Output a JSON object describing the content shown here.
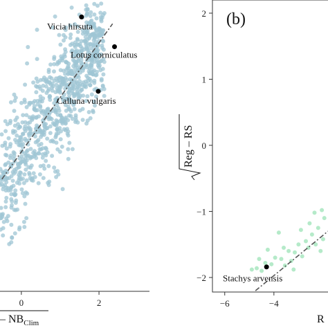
{
  "chart_data": [
    {
      "type": "scatter",
      "panel": "a",
      "xlim": [
        -0.55,
        3.3
      ],
      "ylim": [
        -2.05,
        2.2
      ],
      "x_ticks": [
        0,
        2
      ],
      "x_tick_labels": [
        "0",
        "2"
      ],
      "xlabel_main": "– NB",
      "xlabel_sub": "Clim",
      "point_color": "#9fc6d4",
      "trend_line": {
        "x": [
          -0.5,
          2.35
        ],
        "y": [
          -0.4,
          1.9
        ],
        "style": "dash-dot",
        "color": "#555555"
      },
      "annotations": [
        {
          "label": "Vicia hirsuta",
          "x": 1.55,
          "y": 2.0
        },
        {
          "label": "Lotus corniculatus",
          "x": 2.4,
          "y": 1.56
        },
        {
          "label": "Calluna vulgaris",
          "x": 1.98,
          "y": 0.9
        }
      ]
    },
    {
      "type": "scatter",
      "panel": "b",
      "panel_label": "(b)",
      "xlim": [
        -6.5,
        -1.8
      ],
      "ylim": [
        -2.15,
        2.2
      ],
      "x_ticks": [
        -6,
        -4
      ],
      "x_tick_labels": [
        "−6",
        "−4"
      ],
      "y_ticks": [
        -2,
        -1,
        0,
        1,
        2
      ],
      "y_tick_labels": [
        "−2",
        "−1",
        "0",
        "1",
        "2"
      ],
      "ylabel": "Reg – RS",
      "xlabel_partial": "R",
      "point_color": "#a8e6c0",
      "trend_line": {
        "x": [
          -4.75,
          -1.8
        ],
        "y": [
          -2.2,
          -1.3
        ],
        "style": "dash-dot",
        "color": "#555555"
      },
      "points": [
        [
          -4.9,
          -1.88
        ],
        [
          -4.7,
          -1.86
        ],
        [
          -4.5,
          -1.9
        ],
        [
          -4.35,
          -1.78
        ],
        [
          -4.1,
          -1.8
        ],
        [
          -3.95,
          -1.7
        ],
        [
          -3.7,
          -1.72
        ],
        [
          -3.55,
          -1.82
        ],
        [
          -3.4,
          -1.6
        ],
        [
          -3.3,
          -1.75
        ],
        [
          -3.15,
          -1.62
        ],
        [
          -3.0,
          -1.5
        ],
        [
          -2.85,
          -1.68
        ],
        [
          -2.7,
          -1.45
        ],
        [
          -2.6,
          -1.55
        ],
        [
          -2.45,
          -1.35
        ],
        [
          -2.3,
          -1.5
        ],
        [
          -2.2,
          -1.25
        ],
        [
          -2.1,
          -1.6
        ],
        [
          -2.0,
          -1.42
        ],
        [
          -1.95,
          -1.1
        ],
        [
          -3.8,
          -1.32
        ],
        [
          -2.9,
          -1.28
        ],
        [
          -2.55,
          -1.18
        ],
        [
          -4.25,
          -1.58
        ],
        [
          -3.2,
          -1.88
        ],
        [
          -2.35,
          -1.02
        ],
        [
          -2.05,
          -0.98
        ],
        [
          -4.6,
          -1.72
        ],
        [
          -3.6,
          -1.55
        ]
      ],
      "annotations": [
        {
          "label": "Stachys arvensis",
          "x": -4.3,
          "y": -1.84
        }
      ]
    }
  ]
}
